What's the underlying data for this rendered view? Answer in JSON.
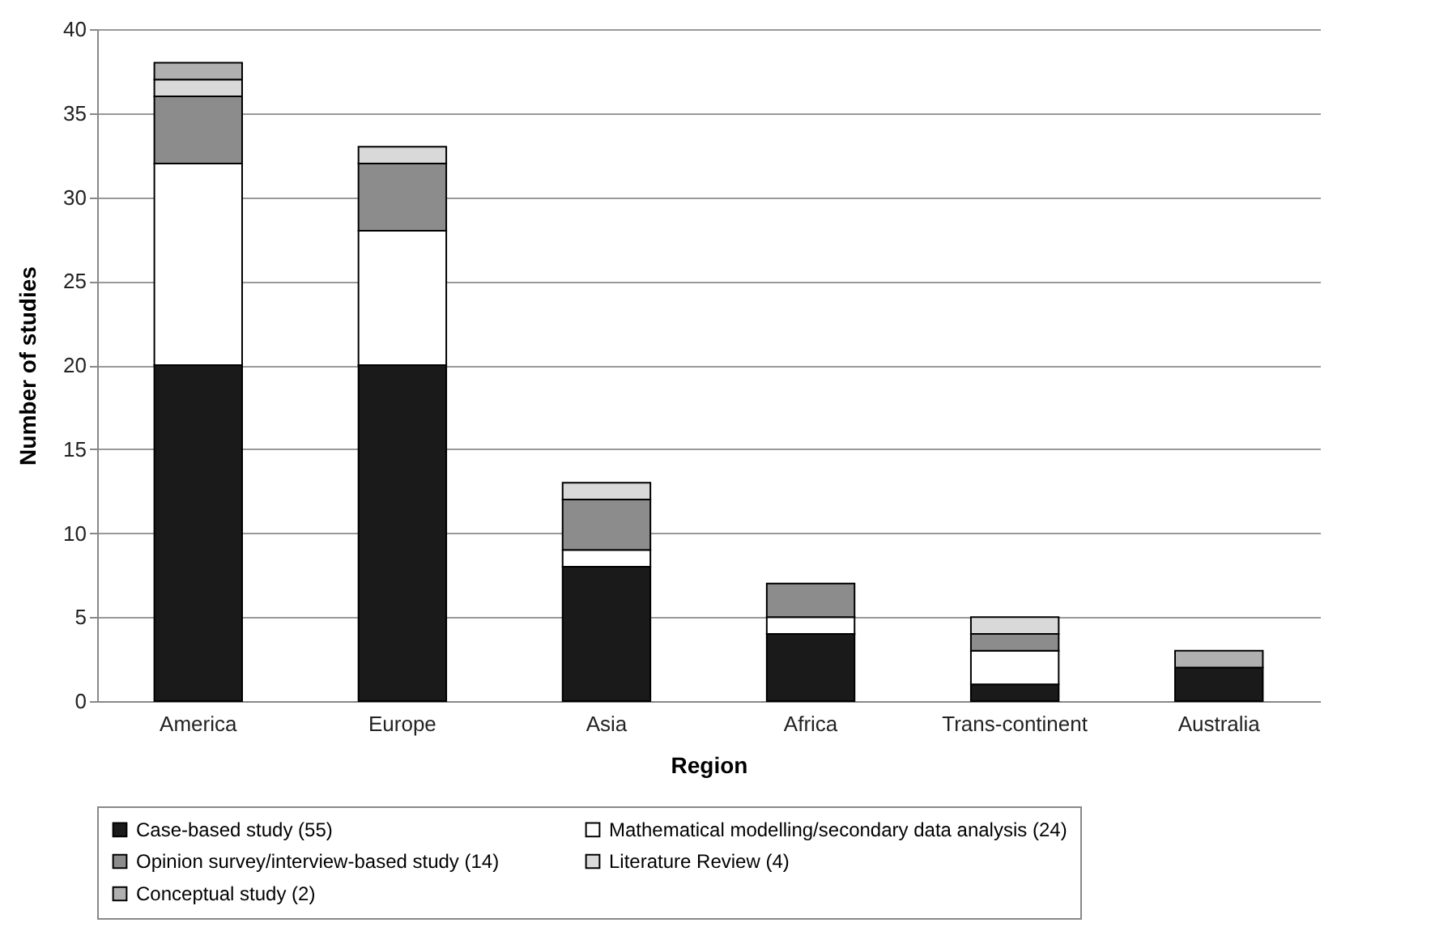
{
  "chart_data": {
    "type": "bar",
    "stacked": true,
    "xlabel": "Region",
    "ylabel": "Number of studies",
    "categories": [
      "America",
      "Europe",
      "Asia",
      "Africa",
      "Trans-continent",
      "Australia"
    ],
    "series": [
      {
        "name": "Case-based study (55)",
        "color": "#1a1a1a",
        "values": [
          20,
          20,
          8,
          4,
          1,
          2
        ]
      },
      {
        "name": "Mathematical modelling/secondary data analysis (24)",
        "color": "#ffffff",
        "values": [
          12,
          8,
          1,
          1,
          2,
          0
        ]
      },
      {
        "name": "Opinion survey/interview-based study (14)",
        "color": "#8c8c8c",
        "values": [
          4,
          4,
          3,
          2,
          1,
          0
        ]
      },
      {
        "name": "Literature Review (4)",
        "color": "#d9d9d9",
        "values": [
          1,
          1,
          1,
          0,
          1,
          0
        ]
      },
      {
        "name": "Conceptual study (2)",
        "color": "#b0b0b0",
        "values": [
          1,
          0,
          0,
          0,
          0,
          1
        ]
      }
    ],
    "ylim": [
      0,
      40
    ],
    "yticks": [
      0,
      5,
      10,
      15,
      20,
      25,
      30,
      35,
      40
    ],
    "grid": "y",
    "legend": "bottom"
  }
}
